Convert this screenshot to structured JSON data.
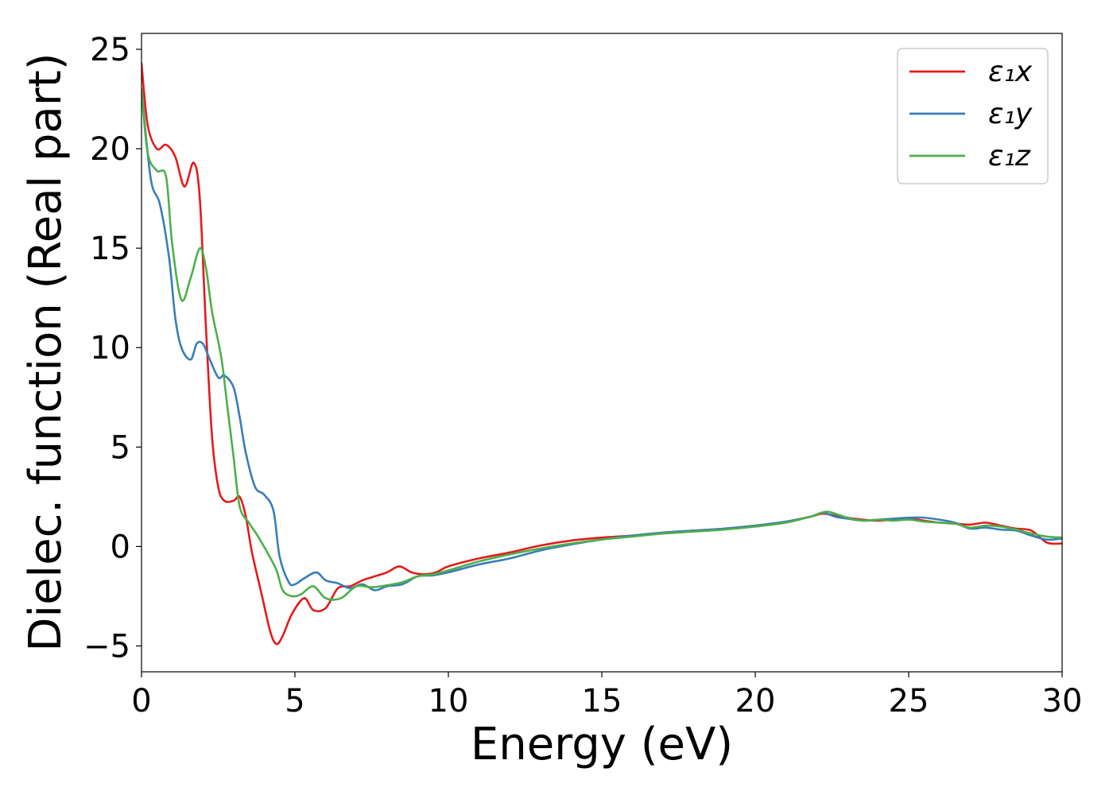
{
  "chart_data": {
    "type": "line",
    "xlabel": "Energy (eV)",
    "ylabel": "Dielec. function (Real part)",
    "xlim": [
      0,
      30
    ],
    "ylim": [
      -6.3,
      25.8
    ],
    "xticks": [
      0,
      5,
      10,
      15,
      20,
      25,
      30
    ],
    "xtick_labels": [
      "0",
      "5",
      "10",
      "15",
      "20",
      "25",
      "30"
    ],
    "yticks": [
      -5,
      0,
      5,
      10,
      15,
      20,
      25
    ],
    "ytick_labels": [
      "−5",
      "0",
      "5",
      "10",
      "15",
      "20",
      "25"
    ],
    "grid": false,
    "legend_position": "top-right",
    "series": [
      {
        "name": "ε₁x",
        "color": "#e41a1c",
        "x": [
          0,
          0.2,
          0.5,
          0.8,
          1.1,
          1.4,
          1.7,
          1.9,
          2.1,
          2.3,
          2.5,
          2.7,
          3.0,
          3.2,
          3.4,
          3.6,
          3.9,
          4.2,
          4.4,
          4.6,
          4.9,
          5.3,
          5.6,
          6.0,
          6.4,
          6.8,
          7.2,
          7.6,
          8.0,
          8.4,
          8.8,
          9.2,
          9.6,
          10.0,
          11.0,
          12.0,
          13.0,
          14.0,
          15.0,
          16.0,
          17.0,
          18.0,
          19.0,
          20.0,
          21.0,
          21.8,
          22.2,
          22.6,
          23.0,
          23.5,
          24.0,
          24.5,
          25.0,
          25.5,
          26.0,
          26.5,
          27.0,
          27.5,
          28.0,
          28.5,
          29.0,
          29.5,
          30.0
        ],
        "y": [
          24.3,
          21.2,
          20.0,
          20.2,
          19.6,
          18.1,
          19.3,
          17.5,
          11.0,
          5.5,
          3.0,
          2.3,
          2.3,
          2.5,
          1.5,
          -0.3,
          -2.3,
          -4.3,
          -4.9,
          -4.5,
          -3.4,
          -2.6,
          -3.2,
          -3.1,
          -2.1,
          -2.0,
          -1.7,
          -1.5,
          -1.3,
          -1.0,
          -1.3,
          -1.4,
          -1.3,
          -1.0,
          -0.6,
          -0.3,
          0.05,
          0.3,
          0.45,
          0.55,
          0.7,
          0.8,
          0.9,
          1.05,
          1.25,
          1.5,
          1.65,
          1.55,
          1.45,
          1.35,
          1.3,
          1.35,
          1.4,
          1.3,
          1.2,
          1.15,
          1.1,
          1.2,
          1.05,
          0.9,
          0.8,
          0.2,
          0.15
        ]
      },
      {
        "name": "ε₁y",
        "color": "#377eb8",
        "x": [
          0,
          0.3,
          0.6,
          0.9,
          1.1,
          1.3,
          1.6,
          1.8,
          2.0,
          2.2,
          2.5,
          2.7,
          3.0,
          3.2,
          3.4,
          3.7,
          4.0,
          4.3,
          4.5,
          4.8,
          5.0,
          5.3,
          5.7,
          6.0,
          6.4,
          6.8,
          7.2,
          7.6,
          8.0,
          8.5,
          9.0,
          9.5,
          10.0,
          11.0,
          12.0,
          13.0,
          14.0,
          15.0,
          16.0,
          17.0,
          18.0,
          19.0,
          20.0,
          21.0,
          21.8,
          22.2,
          22.6,
          23.0,
          23.5,
          24.0,
          24.5,
          25.0,
          25.5,
          26.0,
          26.5,
          27.0,
          27.5,
          28.0,
          28.5,
          29.0,
          29.5,
          30.0
        ],
        "y": [
          23.0,
          18.5,
          17.2,
          14.5,
          11.5,
          10.0,
          9.4,
          10.2,
          10.2,
          9.5,
          8.5,
          8.6,
          8.0,
          6.5,
          4.7,
          3.0,
          2.6,
          1.8,
          -0.5,
          -1.8,
          -1.9,
          -1.6,
          -1.3,
          -1.7,
          -1.85,
          -2.1,
          -1.9,
          -2.2,
          -2.0,
          -1.9,
          -1.5,
          -1.45,
          -1.3,
          -0.9,
          -0.6,
          -0.2,
          0.1,
          0.35,
          0.55,
          0.7,
          0.8,
          0.9,
          1.05,
          1.25,
          1.5,
          1.7,
          1.5,
          1.4,
          1.3,
          1.35,
          1.4,
          1.45,
          1.45,
          1.35,
          1.2,
          0.9,
          0.95,
          0.85,
          0.8,
          0.55,
          0.35,
          0.4
        ]
      },
      {
        "name": "ε₁z",
        "color": "#4daf4a",
        "x": [
          0,
          0.2,
          0.5,
          0.8,
          1.0,
          1.3,
          1.6,
          1.9,
          2.1,
          2.3,
          2.6,
          2.8,
          3.0,
          3.2,
          3.5,
          3.8,
          4.1,
          4.4,
          4.6,
          4.9,
          5.2,
          5.6,
          6.0,
          6.5,
          7.0,
          7.5,
          8.0,
          8.5,
          9.0,
          9.5,
          10.0,
          11.0,
          12.0,
          13.0,
          14.0,
          15.0,
          16.0,
          17.0,
          18.0,
          19.0,
          20.0,
          21.0,
          21.8,
          22.3,
          22.7,
          23.0,
          23.5,
          24.0,
          24.5,
          25.0,
          25.5,
          26.0,
          26.5,
          27.0,
          27.5,
          28.0,
          28.5,
          29.0,
          29.5,
          30.0
        ],
        "y": [
          23.0,
          19.8,
          18.9,
          18.6,
          15.2,
          12.4,
          13.5,
          15.0,
          14.0,
          11.8,
          9.5,
          7.0,
          4.5,
          2.0,
          1.2,
          0.5,
          -0.3,
          -1.2,
          -2.2,
          -2.5,
          -2.4,
          -2.0,
          -2.6,
          -2.6,
          -2.0,
          -2.05,
          -1.95,
          -1.8,
          -1.5,
          -1.4,
          -1.2,
          -0.75,
          -0.4,
          -0.1,
          0.15,
          0.35,
          0.5,
          0.65,
          0.75,
          0.85,
          1.0,
          1.2,
          1.5,
          1.75,
          1.6,
          1.45,
          1.3,
          1.35,
          1.3,
          1.35,
          1.25,
          1.2,
          1.15,
          0.95,
          1.05,
          1.0,
          0.85,
          0.65,
          0.5,
          0.45
        ]
      }
    ]
  }
}
